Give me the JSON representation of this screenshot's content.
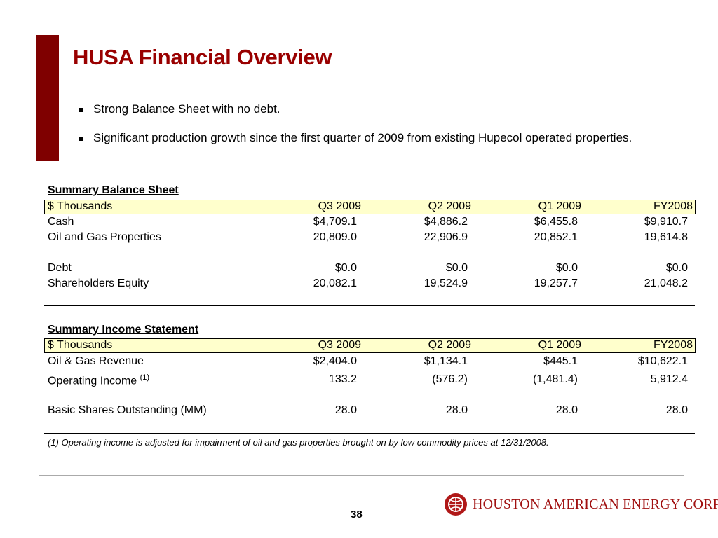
{
  "title": "HUSA Financial Overview",
  "bullets": [
    "Strong Balance Sheet with no debt.",
    "Significant production growth since the first quarter of 2009 from existing Hupecol operated properties."
  ],
  "tables": [
    {
      "title": "Summary Balance Sheet",
      "header": [
        "$ Thousands",
        "Q3 2009",
        "Q2 2009",
        "Q1 2009",
        "FY2008"
      ],
      "rows": [
        {
          "label": "Cash",
          "values": [
            "$4,709.1",
            "$4,886.2",
            "$6,455.8",
            "$9,910.7"
          ]
        },
        {
          "label": "Oil and Gas Properties",
          "values": [
            "20,809.0",
            "22,906.9",
            "20,852.1",
            "19,614.8"
          ]
        },
        {
          "label": "Debt",
          "values": [
            "$0.0",
            "$0.0",
            "$0.0",
            "$0.0"
          ]
        },
        {
          "label": "Shareholders Equity",
          "values": [
            "20,082.1",
            "19,524.9",
            "19,257.7",
            "21,048.2"
          ]
        }
      ]
    },
    {
      "title": "Summary Income Statement",
      "header": [
        "$ Thousands",
        "Q3 2009",
        "Q2 2009",
        "Q1 2009",
        "FY2008"
      ],
      "rows": [
        {
          "label": "Oil & Gas Revenue",
          "values": [
            "$2,404.0",
            "$1,134.1",
            "$445.1",
            "$10,622.1"
          ]
        },
        {
          "label": "Operating Income",
          "note": "(1)",
          "values": [
            "133.2",
            "(576.2)",
            "(1,481.4)",
            "5,912.4"
          ]
        },
        {
          "label": "Basic Shares Outstanding (MM)",
          "values": [
            "28.0",
            "28.0",
            "28.0",
            "28.0"
          ]
        }
      ]
    }
  ],
  "footnote": "(1) Operating income is adjusted for impairment of oil and gas properties brought on by low commodity prices at 12/31/2008.",
  "page_number": "38",
  "logo_text": "HOUSTON AMERICAN ENERGY CORP"
}
